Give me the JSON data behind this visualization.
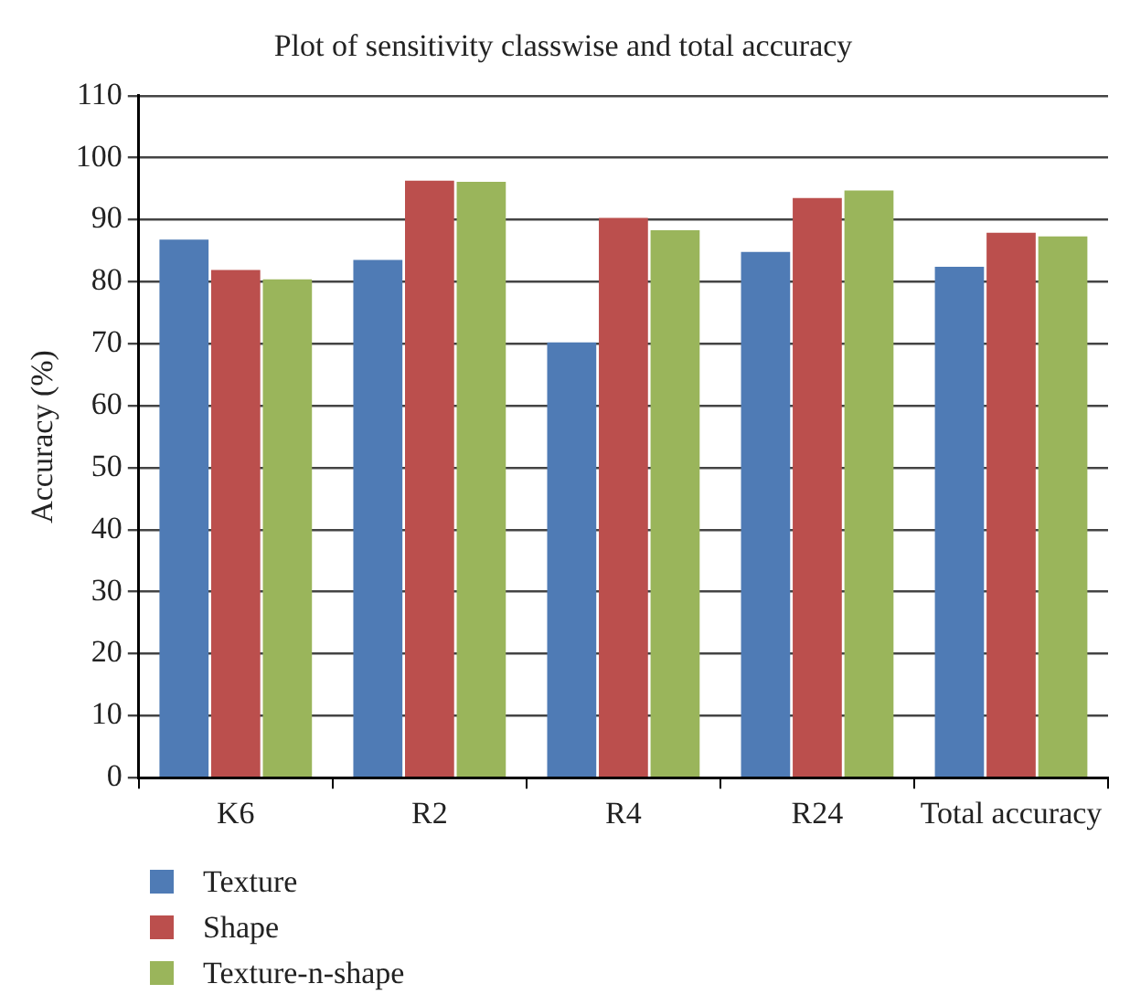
{
  "chart_data": {
    "type": "bar",
    "title": "Plot of sensitivity classwise and total accuracy",
    "ylabel": "Accuracy (%)",
    "categories": [
      "K6",
      "R2",
      "R4",
      "R24",
      "Total accuracy"
    ],
    "series": [
      {
        "name": "Texture",
        "color": "#4f7bb5",
        "values": [
          86.8,
          83.5,
          70.2,
          84.8,
          82.4
        ]
      },
      {
        "name": "Shape",
        "color": "#bb4f4d",
        "values": [
          81.9,
          96.3,
          90.3,
          93.5,
          87.9
        ]
      },
      {
        "name": "Texture-n-shape",
        "color": "#9ab55b",
        "values": [
          80.4,
          96.1,
          88.3,
          94.7,
          87.3
        ]
      }
    ],
    "ylim": [
      0,
      110
    ],
    "yticks": [
      0,
      10,
      20,
      30,
      40,
      50,
      60,
      70,
      80,
      90,
      100,
      110
    ],
    "grid": "y",
    "legend": "bottom left"
  }
}
